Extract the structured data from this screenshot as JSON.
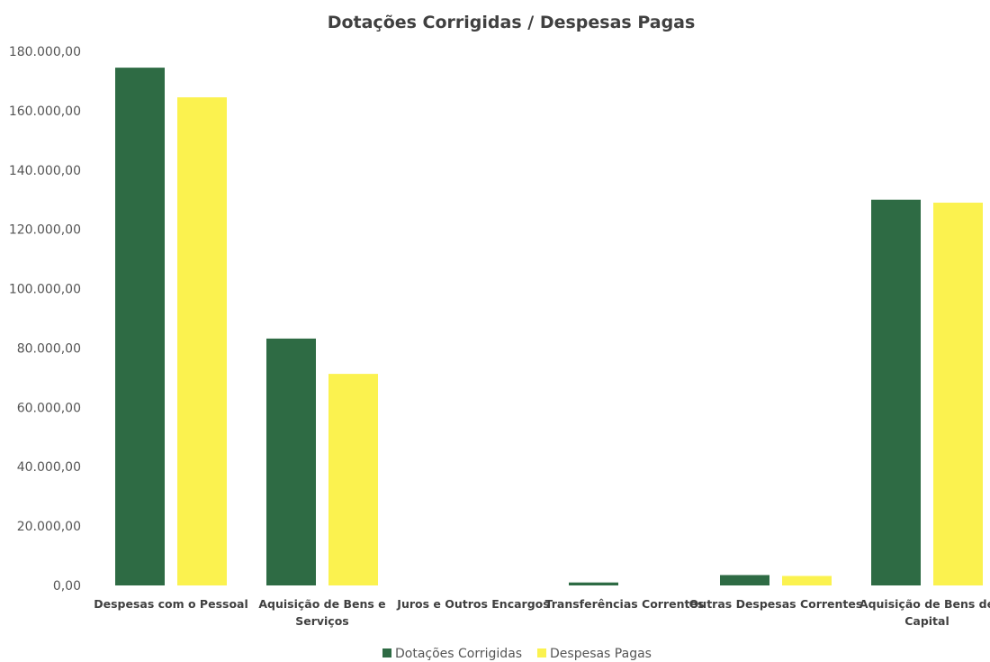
{
  "chart_data": {
    "type": "bar",
    "title": "Dotações Corrigidas / Despesas Pagas",
    "categories": [
      [
        "Despesas com o Pessoal"
      ],
      [
        "Aquisição de Bens e",
        "Serviços"
      ],
      [
        "Juros e Outros Encargos"
      ],
      [
        "Transferências Correntes"
      ],
      [
        "Outras Despesas Correntes"
      ],
      [
        "Aquisição de Bens de",
        "Capital"
      ]
    ],
    "series": [
      {
        "name": "Dotações Corrigidas",
        "color": "#2e6b44",
        "values": [
          174500,
          83200,
          0,
          1000,
          3500,
          130000
        ]
      },
      {
        "name": "Despesas Pagas",
        "color": "#fbf24f",
        "values": [
          164500,
          71300,
          0,
          0,
          3200,
          129000
        ]
      }
    ],
    "ylim": [
      0,
      180000
    ],
    "yticks": [
      "0,00",
      "20.000,00",
      "40.000,00",
      "60.000,00",
      "80.000,00",
      "100.000,00",
      "120.000,00",
      "140.000,00",
      "160.000,00",
      "180.000,00"
    ],
    "grid": false,
    "legend_position": "bottom"
  }
}
